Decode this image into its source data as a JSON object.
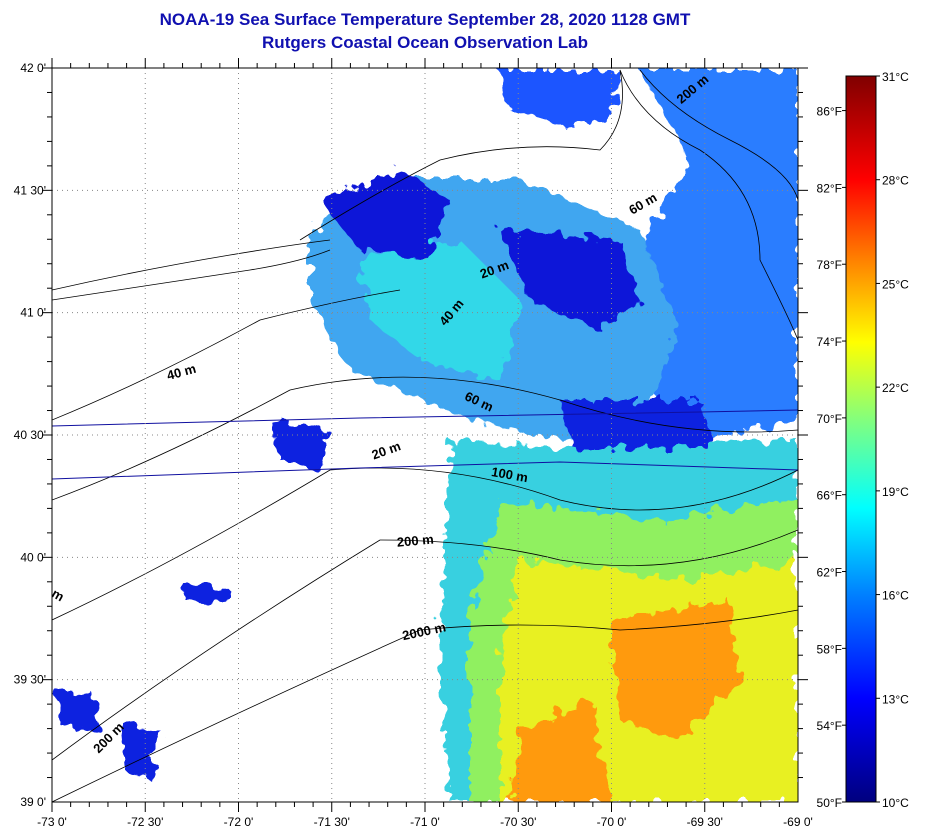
{
  "title": "NOAA-19 Sea Surface Temperature September 28, 2020 1128 GMT",
  "subtitle": "Rutgers Coastal Ocean Observation Lab",
  "map": {
    "lon_range": [
      -73,
      -69
    ],
    "lat_range": [
      39,
      42
    ],
    "lon_labels": [
      "-73 0'",
      "-72 30'",
      "-72 0'",
      "-71 30'",
      "-71 0'",
      "-70 30'",
      "-70 0'",
      "-69 30'",
      "-69 0'"
    ],
    "lat_labels": [
      "42 0'",
      "41 30'",
      "41 0'",
      "40 30'",
      "40 0'",
      "39 30'",
      "39 0'"
    ],
    "contour_labels": [
      {
        "text": "200 m",
        "lon": -69.55,
        "lat": 41.9,
        "rot": -40
      },
      {
        "text": "60 m",
        "lon": -69.82,
        "lat": 41.43,
        "rot": -30
      },
      {
        "text": "20 m",
        "lon": -70.62,
        "lat": 41.16,
        "rot": -20
      },
      {
        "text": "40 m",
        "lon": -70.84,
        "lat": 40.99,
        "rot": -50
      },
      {
        "text": "40 m",
        "lon": -72.3,
        "lat": 40.74,
        "rot": -15
      },
      {
        "text": "60 m",
        "lon": -70.72,
        "lat": 40.62,
        "rot": 25
      },
      {
        "text": "20 m",
        "lon": -71.2,
        "lat": 40.42,
        "rot": -20
      },
      {
        "text": "100 m",
        "lon": -70.55,
        "lat": 40.32,
        "rot": 10
      },
      {
        "text": "200 m",
        "lon": -71.05,
        "lat": 40.05,
        "rot": -5
      },
      {
        "text": "2000 m",
        "lon": -71.0,
        "lat": 39.68,
        "rot": -12
      },
      {
        "text": "200 m",
        "lon": -72.68,
        "lat": 39.25,
        "rot": -45
      },
      {
        "text": "m",
        "lon": -72.98,
        "lat": 39.83,
        "rot": 30
      }
    ]
  },
  "colorbar": {
    "range_c": [
      10,
      31
    ],
    "celsius_labels": [
      "31°C",
      "28°C",
      "25°C",
      "22°C",
      "19°C",
      "16°C",
      "13°C",
      "10°C"
    ],
    "fahrenheit_labels": [
      "86°F",
      "82°F",
      "78°F",
      "74°F",
      "70°F",
      "66°F",
      "62°F",
      "58°F",
      "54°F",
      "50°F"
    ],
    "stops": [
      {
        "c": 10,
        "color": "#00007f"
      },
      {
        "c": 13,
        "color": "#0000ff"
      },
      {
        "c": 16,
        "color": "#0080ff"
      },
      {
        "c": 18.5,
        "color": "#00ffff"
      },
      {
        "c": 21,
        "color": "#80ff80"
      },
      {
        "c": 23.3,
        "color": "#ffff00"
      },
      {
        "c": 25.7,
        "color": "#ff8000"
      },
      {
        "c": 28,
        "color": "#ff0000"
      },
      {
        "c": 31,
        "color": "#800000"
      }
    ]
  }
}
